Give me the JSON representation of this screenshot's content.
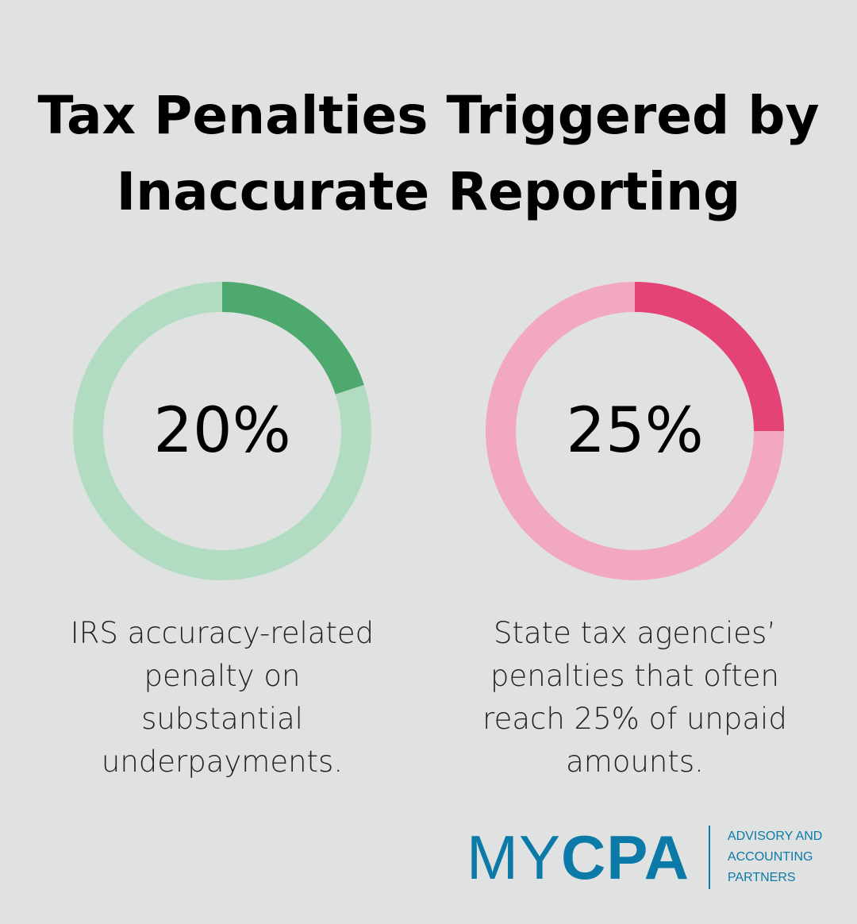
{
  "title": [
    "Tax Penalties Triggered by",
    "Inaccurate Reporting"
  ],
  "chart_data": [
    {
      "type": "pie",
      "variant": "donut",
      "label": "20%",
      "value": 20,
      "caption": "IRS accuracy-related penalty on substantial underpayments.",
      "colors": {
        "filled": "#4ea96e",
        "remainder": "#b1dcc2"
      }
    },
    {
      "type": "pie",
      "variant": "donut",
      "label": "25%",
      "value": 25,
      "caption": "State tax agencies’ penalties that often reach 25% of unpaid amounts.",
      "colors": {
        "filled": "#e44475",
        "remainder": "#f2a8bf"
      }
    }
  ],
  "logo": {
    "name_thin": "MY",
    "name_bold": "CPA",
    "tagline": [
      "ADVISORY AND",
      "ACCOUNTING",
      "PARTNERS"
    ],
    "color": "#0b7aa8"
  }
}
